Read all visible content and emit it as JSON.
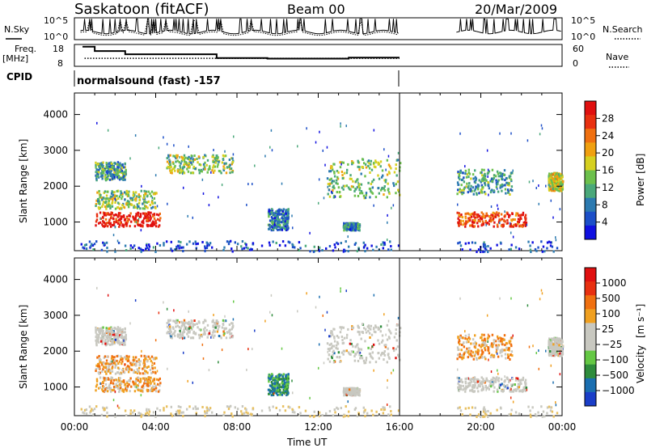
{
  "header": {
    "station": "Saskatoon (fitACF)",
    "beam": "Beam 00",
    "date": "20/Mar/2009"
  },
  "top_panels": {
    "left_label_sky": "N.Sky",
    "sky_ticks": [
      "10^5",
      "10^0"
    ],
    "right_label_search": "N.Search",
    "search_ticks": [
      "10^5",
      "10^0"
    ],
    "left_label_freq": "Freq.",
    "left_label_freq_unit": "[MHz]",
    "freq_ticks": [
      "18",
      "8"
    ],
    "right_label_nave": "Nave",
    "nave_ticks": [
      "60",
      "0"
    ],
    "left_label_cpid": "CPID",
    "cpid_text": "normalsound (fast) -157"
  },
  "colors": {
    "power_scale": [
      "#1010e0",
      "#1c4fc8",
      "#2c7ab0",
      "#4aa87a",
      "#6cc04c",
      "#d6d020",
      "#f0a010",
      "#f07010",
      "#e83010",
      "#e01010"
    ],
    "velocity_scale": [
      "#1a3ec8",
      "#1a6eb0",
      "#2e8c3c",
      "#64c844",
      "#c8c8c0",
      "#c8c8c0",
      "#f0a020",
      "#f07010",
      "#e83010",
      "#e01010"
    ],
    "ground_scatter": "#a0a0a0"
  },
  "chart_data": [
    {
      "type": "line",
      "panel": "N.Sky / N.Search",
      "x_range_hours": [
        0,
        24
      ],
      "y_scale": "log",
      "y_ticks": [
        "10^0",
        "10^5"
      ],
      "data_gaps_hours": [
        [
          16.0,
          18.8
        ]
      ]
    },
    {
      "type": "line",
      "panel": "Freq. [MHz] / Nave",
      "x_range_hours": [
        0,
        24
      ],
      "freq_ylim": [
        8,
        18
      ],
      "nave_ylim": [
        0,
        60
      ],
      "series": [
        {
          "name": "Freq.",
          "x": [
            0.4,
            1.0,
            1.0,
            2.5,
            2.5,
            7.0,
            7.0,
            9.5,
            9.5,
            11.0,
            11.0,
            13.5,
            13.5,
            16.0
          ],
          "values": [
            17,
            17,
            15,
            15,
            13.5,
            13.5,
            11.8,
            11.8,
            11.5,
            11.5,
            11.5,
            11.5,
            12.0,
            12.0
          ]
        },
        {
          "name": "Nave",
          "x": [
            0.5,
            16.0
          ],
          "values": [
            22,
            22
          ]
        }
      ]
    },
    {
      "type": "heatmap",
      "panel": "Power",
      "ylabel": "Slant Range [km]",
      "yticks": [
        1000,
        2000,
        3000,
        4000
      ],
      "ylim": [
        200,
        4600
      ],
      "xlabel": "Time UT",
      "xticks": [
        "00:00",
        "04:00",
        "08:00",
        "12:00",
        "16:00",
        "20:00",
        "00:00"
      ],
      "xlim_hours": [
        0,
        24
      ],
      "colorbar_label": "Power [dB]",
      "colorbar_ticks": [
        "28",
        "24",
        "20",
        "16",
        "12",
        "8",
        "4"
      ],
      "colorbar_range": [
        0,
        30
      ]
    },
    {
      "type": "heatmap",
      "panel": "Velocity",
      "ylabel": "Slant Range [km]",
      "yticks": [
        1000,
        2000,
        3000,
        4000
      ],
      "ylim": [
        200,
        4600
      ],
      "xlabel": "Time UT",
      "xticks": [
        "00:00",
        "04:00",
        "08:00",
        "12:00",
        "16:00",
        "20:00",
        "00:00"
      ],
      "xlim_hours": [
        0,
        24
      ],
      "colorbar_label": "Velocity [m s⁻¹]",
      "colorbar_ticks": [
        "1000",
        "500",
        "100",
        "25",
        "−25",
        "−100",
        "−500",
        "−1000"
      ]
    }
  ],
  "axis_titles": {
    "ylabel_power": "Slant Range [km]",
    "ylabel_velocity": "Slant Range [km]",
    "xlabel": "Time UT",
    "power_colorbar": "Power [dB]",
    "velocity_colorbar_main": "Velocity",
    "velocity_colorbar_unit": "[m s⁻¹]"
  }
}
